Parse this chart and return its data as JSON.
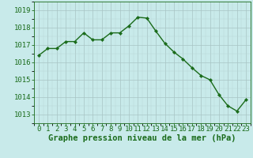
{
  "hours": [
    0,
    1,
    2,
    3,
    4,
    5,
    6,
    7,
    8,
    9,
    10,
    11,
    12,
    13,
    14,
    15,
    16,
    17,
    18,
    19,
    20,
    21,
    22,
    23
  ],
  "pressure": [
    1016.4,
    1016.8,
    1016.8,
    1017.2,
    1017.2,
    1017.7,
    1017.3,
    1017.3,
    1017.7,
    1017.7,
    1018.1,
    1018.6,
    1018.55,
    1017.8,
    1017.1,
    1016.6,
    1016.2,
    1015.7,
    1015.25,
    1015.0,
    1014.15,
    1013.5,
    1013.2,
    1013.85
  ],
  "ylim": [
    1012.5,
    1019.5
  ],
  "yticks": [
    1013,
    1014,
    1015,
    1016,
    1017,
    1018,
    1019
  ],
  "xticks": [
    0,
    1,
    2,
    3,
    4,
    5,
    6,
    7,
    8,
    9,
    10,
    11,
    12,
    13,
    14,
    15,
    16,
    17,
    18,
    19,
    20,
    21,
    22,
    23
  ],
  "line_color": "#1a6b1a",
  "marker": "D",
  "marker_size": 2.2,
  "bg_color": "#c8eaea",
  "grid_color_major": "#a8c4c4",
  "grid_color_minor": "#b8d4d4",
  "xlabel": "Graphe pression niveau de la mer (hPa)",
  "xlabel_color": "#1a6b1a",
  "xlabel_fontsize": 7.5,
  "tick_fontsize": 6.5,
  "line_width": 1.0
}
